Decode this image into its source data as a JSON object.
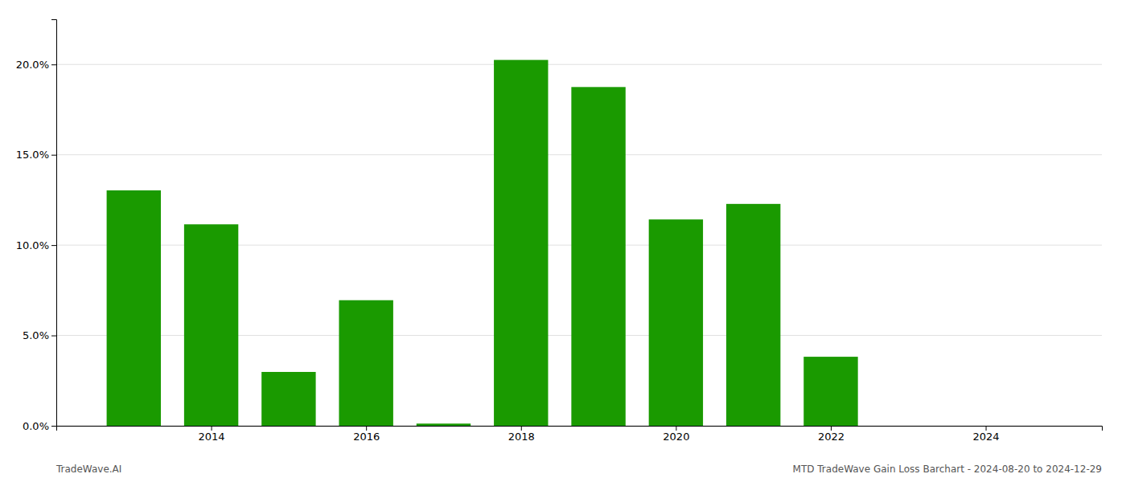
{
  "chart_data": {
    "type": "bar",
    "x": [
      2013,
      2014,
      2015,
      2016,
      2017,
      2018,
      2019,
      2020,
      2021,
      2022,
      2023
    ],
    "values": [
      0.1303,
      0.1115,
      0.0298,
      0.0695,
      0.0012,
      0.2025,
      0.1875,
      0.1142,
      0.1228,
      0.0382,
      0.0
    ],
    "color": "#1a9a00",
    "xlim": [
      2012.0,
      2025.5
    ],
    "xticks": [
      2014,
      2016,
      2018,
      2020,
      2022,
      2024
    ],
    "ylim": [
      0,
      0.225
    ],
    "yticks": [
      {
        "value": 0.0,
        "label": "0.0%"
      },
      {
        "value": 0.05,
        "label": "5.0%"
      },
      {
        "value": 0.1,
        "label": "10.0%"
      },
      {
        "value": 0.15,
        "label": "15.0%"
      },
      {
        "value": 0.2,
        "label": "20.0%"
      }
    ],
    "grid": true,
    "annotations": [
      "TradeWave.AI",
      "MTD TradeWave Gain Loss Barchart - 2024-08-20 to 2024-12-29"
    ]
  }
}
